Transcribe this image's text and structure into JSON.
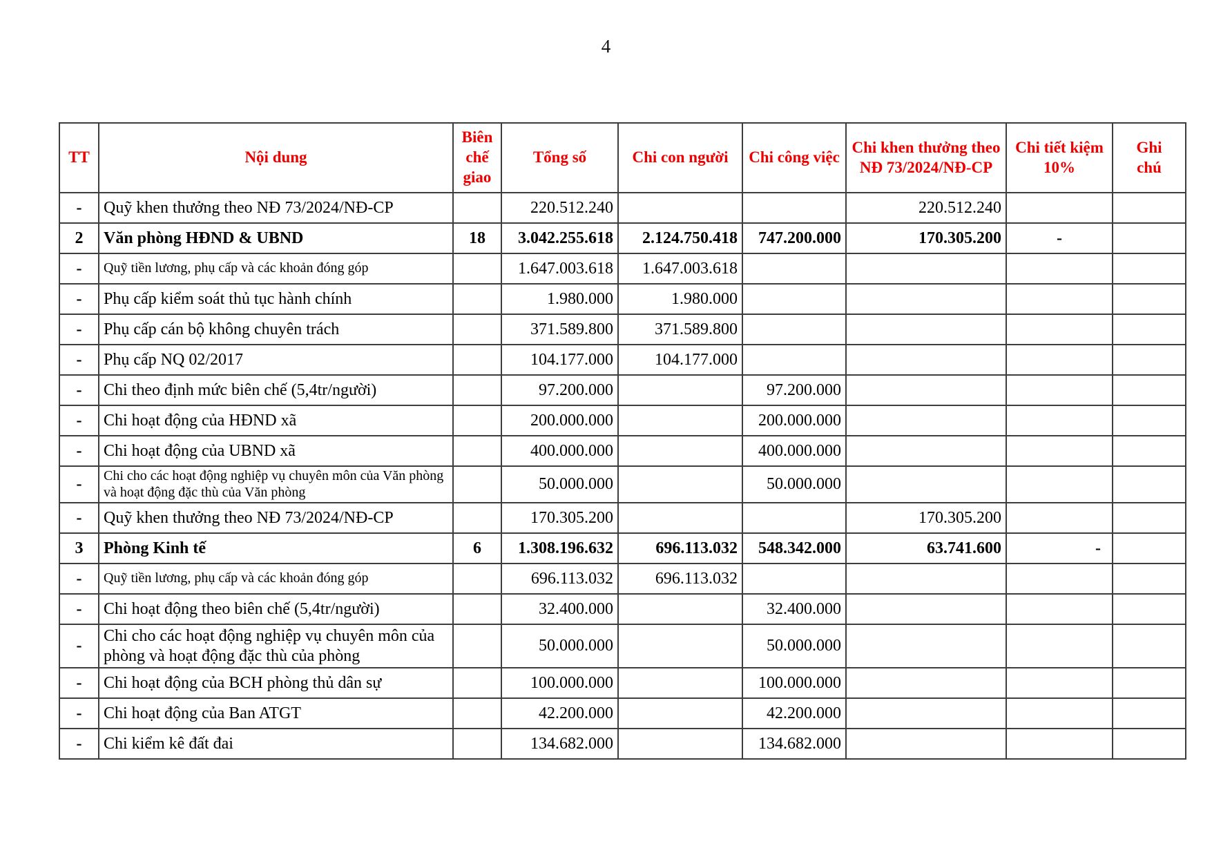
{
  "page": {
    "number": "4"
  },
  "colors": {
    "header_text": "#ee0000",
    "border": "#3d3d3d",
    "body_text": "#000000",
    "background": "#ffffff"
  },
  "table": {
    "columns": [
      {
        "key": "tt",
        "label": "TT"
      },
      {
        "key": "noi_dung",
        "label": "Nội dung"
      },
      {
        "key": "bien_che",
        "label": "Biên chế giao"
      },
      {
        "key": "tong_so",
        "label": "Tổng số"
      },
      {
        "key": "chi_con_nguoi",
        "label": "Chi con người"
      },
      {
        "key": "chi_cong_viec",
        "label": "Chi công việc"
      },
      {
        "key": "chi_khen_thuong",
        "label": "Chi khen thưởng theo NĐ 73/2024/NĐ-CP"
      },
      {
        "key": "chi_tiet_kiem",
        "label": "Chi tiết kiệm 10%"
      },
      {
        "key": "ghi_chu",
        "label": "Ghi chú"
      }
    ],
    "rows": [
      {
        "tt": "-",
        "noi_dung": "Quỹ khen thưởng theo NĐ 73/2024/NĐ-CP",
        "bien_che": "",
        "tong_so": "220.512.240",
        "chi_con_nguoi": "",
        "chi_cong_viec": "",
        "chi_khen_thuong": "220.512.240",
        "chi_tiet_kiem": "",
        "ghi_chu": "",
        "style": "normal",
        "tiet_kiem_align": "center"
      },
      {
        "tt": "2",
        "noi_dung": "Văn phòng HĐND & UBND",
        "bien_che": "18",
        "tong_so": "3.042.255.618",
        "chi_con_nguoi": "2.124.750.418",
        "chi_cong_viec": "747.200.000",
        "chi_khen_thuong": "170.305.200",
        "chi_tiet_kiem": "-",
        "ghi_chu": "",
        "style": "section",
        "tiet_kiem_align": "center"
      },
      {
        "tt": "-",
        "noi_dung": "Quỹ tiền lương, phụ cấp và các khoản đóng góp",
        "bien_che": "",
        "tong_so": "1.647.003.618",
        "chi_con_nguoi": "1.647.003.618",
        "chi_cong_viec": "",
        "chi_khen_thuong": "",
        "chi_tiet_kiem": "",
        "ghi_chu": "",
        "style": "small",
        "tiet_kiem_align": "center"
      },
      {
        "tt": "-",
        "noi_dung": "Phụ cấp kiểm soát thủ tục hành chính",
        "bien_che": "",
        "tong_so": "1.980.000",
        "chi_con_nguoi": "1.980.000",
        "chi_cong_viec": "",
        "chi_khen_thuong": "",
        "chi_tiet_kiem": "",
        "ghi_chu": "",
        "style": "normal",
        "tiet_kiem_align": "center"
      },
      {
        "tt": "-",
        "noi_dung": "Phụ cấp cán bộ không chuyên trách",
        "bien_che": "",
        "tong_so": "371.589.800",
        "chi_con_nguoi": "371.589.800",
        "chi_cong_viec": "",
        "chi_khen_thuong": "",
        "chi_tiet_kiem": "",
        "ghi_chu": "",
        "style": "normal",
        "tiet_kiem_align": "center"
      },
      {
        "tt": "-",
        "noi_dung": "Phụ cấp NQ 02/2017",
        "bien_che": "",
        "tong_so": "104.177.000",
        "chi_con_nguoi": "104.177.000",
        "chi_cong_viec": "",
        "chi_khen_thuong": "",
        "chi_tiet_kiem": "",
        "ghi_chu": "",
        "style": "normal",
        "tiet_kiem_align": "center"
      },
      {
        "tt": "-",
        "noi_dung": "Chi theo định mức biên chế (5,4tr/người)",
        "bien_che": "",
        "tong_so": "97.200.000",
        "chi_con_nguoi": "",
        "chi_cong_viec": "97.200.000",
        "chi_khen_thuong": "",
        "chi_tiet_kiem": "",
        "ghi_chu": "",
        "style": "normal",
        "tiet_kiem_align": "center"
      },
      {
        "tt": "-",
        "noi_dung": "Chi hoạt động của HĐND xã",
        "bien_che": "",
        "tong_so": "200.000.000",
        "chi_con_nguoi": "",
        "chi_cong_viec": "200.000.000",
        "chi_khen_thuong": "",
        "chi_tiet_kiem": "",
        "ghi_chu": "",
        "style": "normal",
        "tiet_kiem_align": "center"
      },
      {
        "tt": "-",
        "noi_dung": "Chi hoạt động của UBND xã",
        "bien_che": "",
        "tong_so": "400.000.000",
        "chi_con_nguoi": "",
        "chi_cong_viec": "400.000.000",
        "chi_khen_thuong": "",
        "chi_tiet_kiem": "",
        "ghi_chu": "",
        "style": "normal",
        "tiet_kiem_align": "center"
      },
      {
        "tt": "-",
        "noi_dung": "Chi cho các hoạt động nghiệp vụ chuyên môn của Văn phòng và hoạt động đặc thù của Văn phòng",
        "bien_che": "",
        "tong_so": "50.000.000",
        "chi_con_nguoi": "",
        "chi_cong_viec": "50.000.000",
        "chi_khen_thuong": "",
        "chi_tiet_kiem": "",
        "ghi_chu": "",
        "style": "small",
        "tiet_kiem_align": "center"
      },
      {
        "tt": "-",
        "noi_dung": "Quỹ khen thưởng theo NĐ 73/2024/NĐ-CP",
        "bien_che": "",
        "tong_so": "170.305.200",
        "chi_con_nguoi": "",
        "chi_cong_viec": "",
        "chi_khen_thuong": "170.305.200",
        "chi_tiet_kiem": "",
        "ghi_chu": "",
        "style": "normal",
        "tiet_kiem_align": "center"
      },
      {
        "tt": "3",
        "noi_dung": "Phòng Kinh tế",
        "bien_che": "6",
        "tong_so": "1.308.196.632",
        "chi_con_nguoi": "696.113.032",
        "chi_cong_viec": "548.342.000",
        "chi_khen_thuong": "63.741.600",
        "chi_tiet_kiem": "-",
        "ghi_chu": "",
        "style": "section",
        "tiet_kiem_align": "right"
      },
      {
        "tt": "-",
        "noi_dung": "Quỹ tiền lương, phụ cấp và các khoản đóng góp",
        "bien_che": "",
        "tong_so": "696.113.032",
        "chi_con_nguoi": "696.113.032",
        "chi_cong_viec": "",
        "chi_khen_thuong": "",
        "chi_tiet_kiem": "",
        "ghi_chu": "",
        "style": "small",
        "tiet_kiem_align": "center"
      },
      {
        "tt": "-",
        "noi_dung": "Chi hoạt động theo biên chế (5,4tr/người)",
        "bien_che": "",
        "tong_so": "32.400.000",
        "chi_con_nguoi": "",
        "chi_cong_viec": "32.400.000",
        "chi_khen_thuong": "",
        "chi_tiet_kiem": "",
        "ghi_chu": "",
        "style": "normal",
        "tiet_kiem_align": "center"
      },
      {
        "tt": "-",
        "noi_dung": "Chi cho các hoạt động nghiệp vụ chuyên môn của phòng và hoạt động đặc thù của phòng",
        "bien_che": "",
        "tong_so": "50.000.000",
        "chi_con_nguoi": "",
        "chi_cong_viec": "50.000.000",
        "chi_khen_thuong": "",
        "chi_tiet_kiem": "",
        "ghi_chu": "",
        "style": "normal",
        "tiet_kiem_align": "center"
      },
      {
        "tt": "-",
        "noi_dung": "Chi hoạt động của BCH phòng thủ dân sự",
        "bien_che": "",
        "tong_so": "100.000.000",
        "chi_con_nguoi": "",
        "chi_cong_viec": "100.000.000",
        "chi_khen_thuong": "",
        "chi_tiet_kiem": "",
        "ghi_chu": "",
        "style": "normal",
        "tiet_kiem_align": "center"
      },
      {
        "tt": "-",
        "noi_dung": "Chi hoạt động của Ban ATGT",
        "bien_che": "",
        "tong_so": "42.200.000",
        "chi_con_nguoi": "",
        "chi_cong_viec": "42.200.000",
        "chi_khen_thuong": "",
        "chi_tiet_kiem": "",
        "ghi_chu": "",
        "style": "normal",
        "tiet_kiem_align": "center"
      },
      {
        "tt": "-",
        "noi_dung": "Chi kiểm kê đất đai",
        "bien_che": "",
        "tong_so": "134.682.000",
        "chi_con_nguoi": "",
        "chi_cong_viec": "134.682.000",
        "chi_khen_thuong": "",
        "chi_tiet_kiem": "",
        "ghi_chu": "",
        "style": "normal",
        "tiet_kiem_align": "center"
      }
    ]
  }
}
